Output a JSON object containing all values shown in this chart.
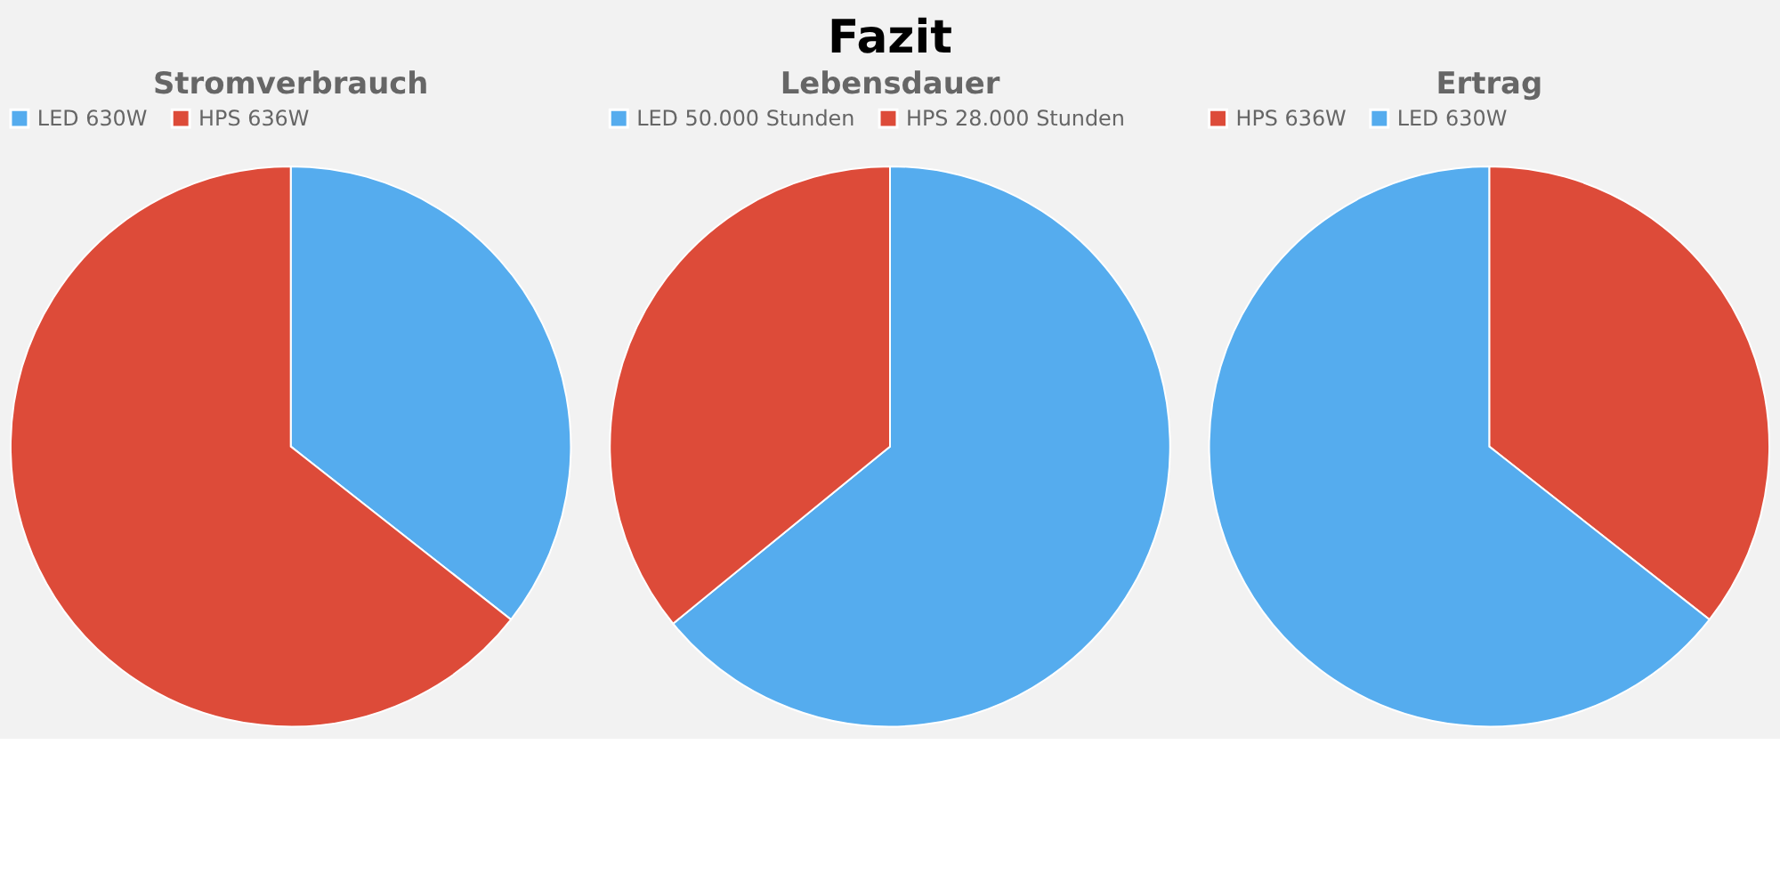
{
  "chart_data": [
    {
      "type": "pie",
      "title": "Stromverbrauch",
      "categories": [
        "LED 630W",
        "HPS 636W"
      ],
      "values": [
        35.6,
        64.4
      ],
      "colors": [
        "#55acee",
        "#dd4b39"
      ],
      "legend": "top"
    },
    {
      "type": "pie",
      "title": "Lebensdauer",
      "categories": [
        "LED 50.000 Stunden",
        "HPS 28.000 Stunden"
      ],
      "values": [
        64.1,
        35.9
      ],
      "colors": [
        "#55acee",
        "#dd4b39"
      ],
      "legend": "top"
    },
    {
      "type": "pie",
      "title": "Ertrag",
      "categories": [
        "HPS 636W",
        "LED 630W"
      ],
      "values": [
        35.6,
        64.4
      ],
      "colors": [
        "#dd4b39",
        "#55acee"
      ],
      "legend": "top",
      "annotations": [
        "Fazit"
      ]
    }
  ]
}
